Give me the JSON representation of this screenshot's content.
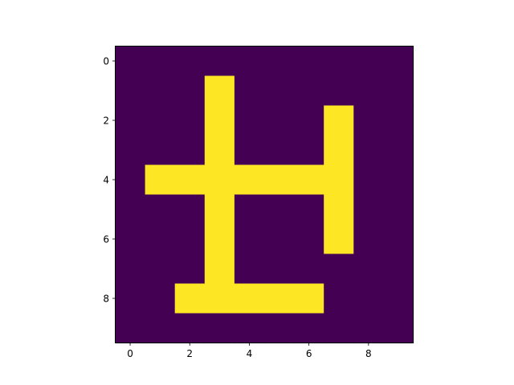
{
  "chart_data": {
    "type": "heatmap",
    "title": "",
    "xlabel": "",
    "ylabel": "",
    "xlim": [
      -0.5,
      9.5
    ],
    "ylim": [
      9.5,
      -0.5
    ],
    "y_axis_inverted": true,
    "grid": false,
    "colormap": "viridis",
    "colors": {
      "low": "#440154",
      "high": "#fde725"
    },
    "x_ticks": [
      0,
      2,
      4,
      6,
      8
    ],
    "y_ticks": [
      0,
      2,
      4,
      6,
      8
    ],
    "x_tick_labels": [
      "0",
      "2",
      "4",
      "6",
      "8"
    ],
    "y_tick_labels": [
      "0",
      "2",
      "4",
      "6",
      "8"
    ],
    "matrix": [
      [
        0,
        0,
        0,
        0,
        0,
        0,
        0,
        0,
        0,
        0
      ],
      [
        0,
        0,
        0,
        1,
        0,
        0,
        0,
        0,
        0,
        0
      ],
      [
        0,
        0,
        0,
        1,
        0,
        0,
        0,
        1,
        0,
        0
      ],
      [
        0,
        0,
        0,
        1,
        0,
        0,
        0,
        1,
        0,
        0
      ],
      [
        0,
        1,
        1,
        1,
        1,
        1,
        1,
        1,
        0,
        0
      ],
      [
        0,
        0,
        0,
        1,
        0,
        0,
        0,
        1,
        0,
        0
      ],
      [
        0,
        0,
        0,
        1,
        0,
        0,
        0,
        1,
        0,
        0
      ],
      [
        0,
        0,
        0,
        1,
        0,
        0,
        0,
        0,
        0,
        0
      ],
      [
        0,
        0,
        1,
        1,
        1,
        1,
        1,
        0,
        0,
        0
      ],
      [
        0,
        0,
        0,
        0,
        0,
        0,
        0,
        0,
        0,
        0
      ]
    ]
  }
}
